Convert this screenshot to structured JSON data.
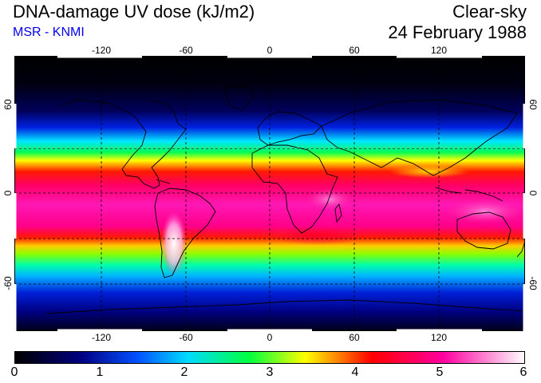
{
  "header": {
    "title": "DNA-damage UV dose (kJ/m2)",
    "subtitle": "MSR - KNMI",
    "sky": "Clear-sky",
    "date": "24 February 1988"
  },
  "map": {
    "lon_ticks": [
      "-120",
      "-60",
      "0",
      "60",
      "120"
    ],
    "lat_ticks": [
      "60",
      "0",
      "-60"
    ],
    "lat_ticks_right": [
      "60",
      "0",
      "-60"
    ]
  },
  "colorbar": {
    "ticks": [
      "0",
      "1",
      "2",
      "3",
      "4",
      "5",
      "6"
    ],
    "colors": [
      "#000000",
      "#000080",
      "#0050ff",
      "#00dcff",
      "#00ff40",
      "#ffff00",
      "#ff0000",
      "#ff00a0",
      "#ffffff"
    ]
  }
}
